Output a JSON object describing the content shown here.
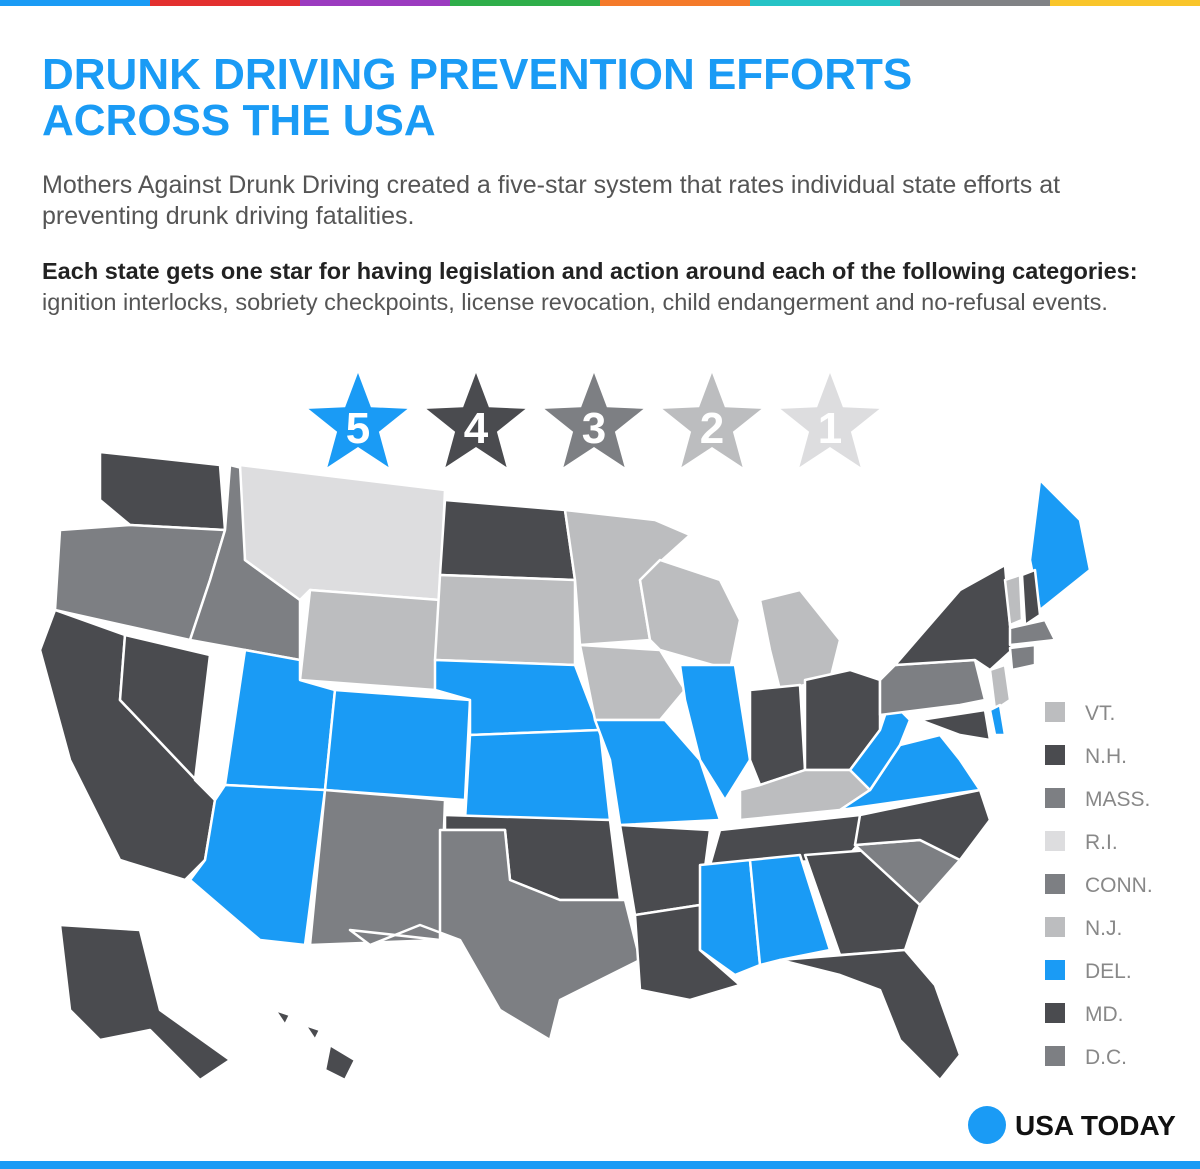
{
  "header": {
    "title": "DRUNK DRIVING PREVENTION EFFORTS ACROSS THE USA",
    "subtitle": "Mothers Against Drunk Driving created a five-star system that rates individual state efforts at preventing drunk driving fatalities.",
    "criteria_lead": "Each state gets one star for having legislation and action around each of the following categories:",
    "criteria_list": "ignition interlocks, sobriety checkpoints, license revocation, child endangerment and no-refusal events."
  },
  "rating_key": [
    {
      "stars": 5,
      "color": "#1a9bf5"
    },
    {
      "stars": 4,
      "color": "#4a4b4f"
    },
    {
      "stars": 3,
      "color": "#7d7f83"
    },
    {
      "stars": 2,
      "color": "#bcbdbf"
    },
    {
      "stars": 1,
      "color": "#dddddf"
    }
  ],
  "small_states": [
    {
      "label": "VT.",
      "stars": 2
    },
    {
      "label": "N.H.",
      "stars": 4
    },
    {
      "label": "MASS.",
      "stars": 3
    },
    {
      "label": "R.I.",
      "stars": 1
    },
    {
      "label": "CONN.",
      "stars": 3
    },
    {
      "label": "N.J.",
      "stars": 2
    },
    {
      "label": "DEL.",
      "stars": 5
    },
    {
      "label": "MD.",
      "stars": 4
    },
    {
      "label": "D.C.",
      "stars": 3
    }
  ],
  "brand": "USA TODAY"
}
